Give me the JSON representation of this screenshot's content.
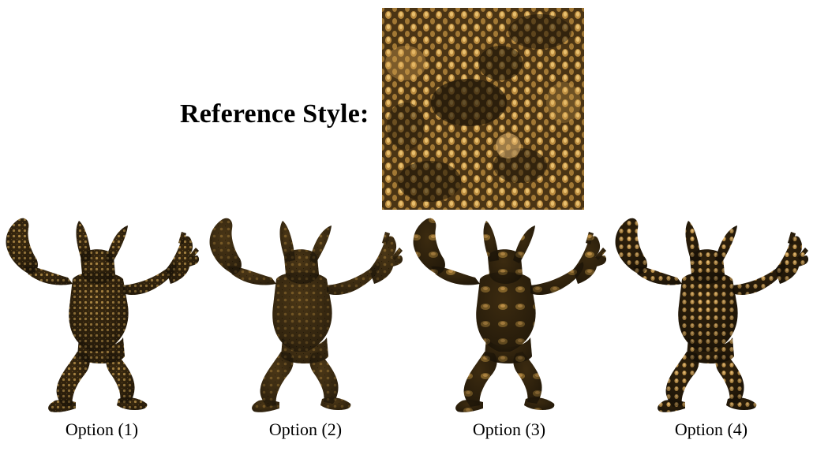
{
  "reference": {
    "label": "Reference Style:",
    "texture": "spotted-bronze-scales"
  },
  "options": [
    {
      "label": "Option (1)",
      "pattern": "fine-dense-spots"
    },
    {
      "label": "Option (2)",
      "pattern": "subtle-dark-spots"
    },
    {
      "label": "Option (3)",
      "pattern": "smooth-blotches"
    },
    {
      "label": "Option (4)",
      "pattern": "bright-scaled-spots"
    }
  ],
  "colors": {
    "dark": "#2a1d0c",
    "mid": "#6b4b1f",
    "highlight": "#d9a652",
    "background": "#ffffff"
  }
}
